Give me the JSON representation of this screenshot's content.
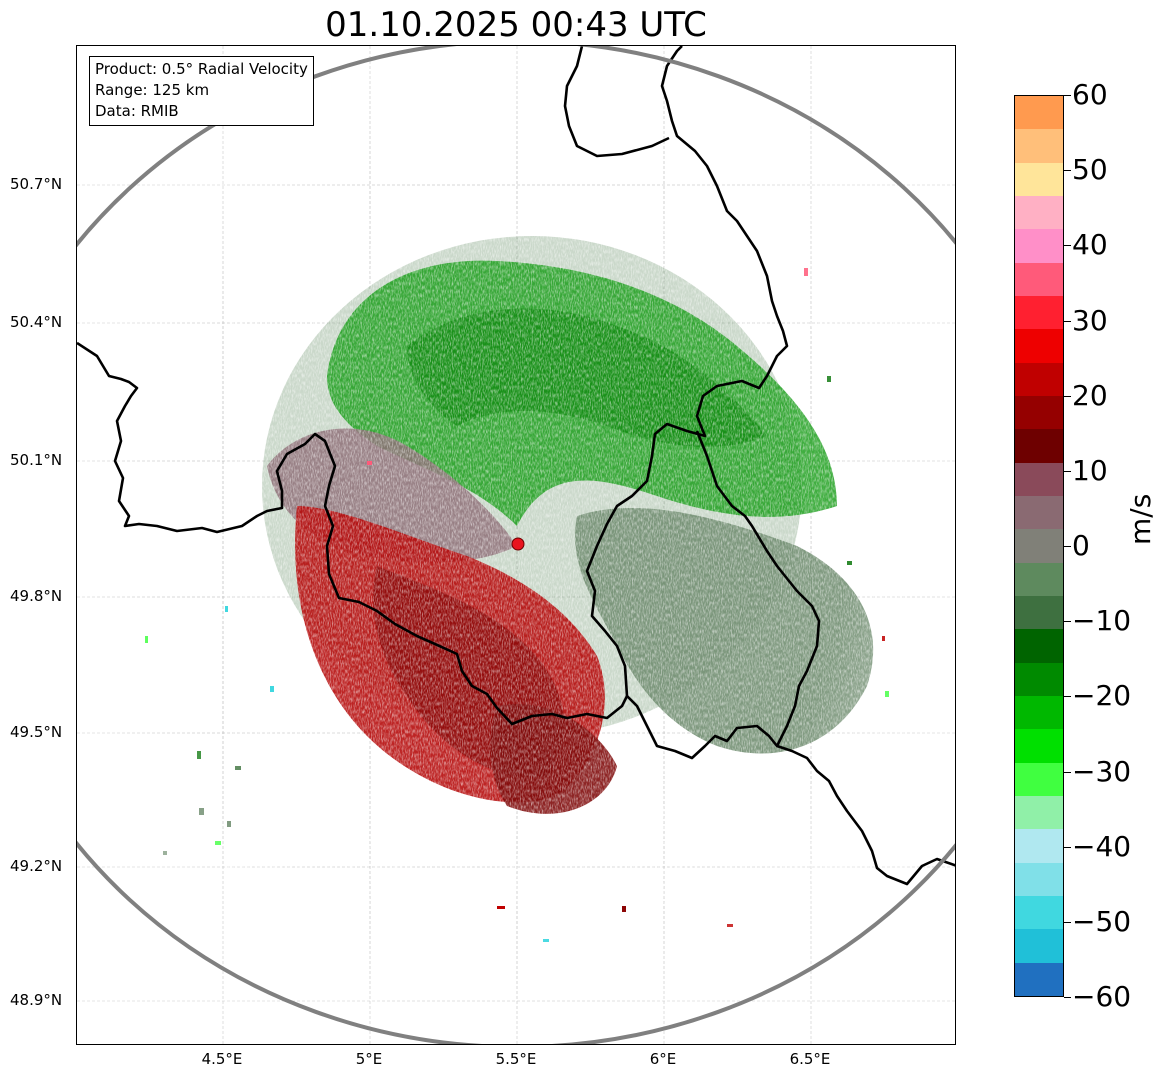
{
  "title": "01.10.2025 00:43 UTC",
  "info_box": {
    "product": "Product: 0.5° Radial Velocity",
    "range": "Range: 125 km",
    "data": "Data: RMIB"
  },
  "map": {
    "lat_labels": [
      "50.7°N",
      "50.4°N",
      "50.1°N",
      "49.8°N",
      "49.5°N",
      "49.2°N",
      "48.9°N"
    ],
    "lon_labels": [
      "4.5°E",
      "5°E",
      "5.5°E",
      "6°E",
      "6.5°E"
    ],
    "radar_site": {
      "lon": 5.5,
      "lat": 49.91
    },
    "range_ring_km": 125,
    "colors": {
      "range_ring": "#808080",
      "border": "#000000",
      "radar_marker": "#e8141e",
      "grid": "#b0b0b0"
    }
  },
  "colorbar": {
    "unit": "m/s",
    "tick_labels": [
      "60",
      "50",
      "40",
      "30",
      "20",
      "10",
      "0",
      "−10",
      "−20",
      "−30",
      "−40",
      "−50",
      "−60"
    ],
    "range": [
      -60,
      60
    ],
    "colors_top_to_bottom": [
      "#ff9a4f",
      "#ffbf7a",
      "#ffe59a",
      "#ffb0c4",
      "#ff8fc8",
      "#ff5a7a",
      "#ff2030",
      "#ee0000",
      "#c00000",
      "#950000",
      "#6e0000",
      "#8a4a5a",
      "#8a6a72",
      "#808078",
      "#5e8a5e",
      "#3e7040",
      "#006400",
      "#008a00",
      "#00b800",
      "#00e000",
      "#40ff40",
      "#90f0a8",
      "#b0e8f0",
      "#80e0e8",
      "#40d8e0",
      "#20c0d8",
      "#2070c0"
    ]
  }
}
